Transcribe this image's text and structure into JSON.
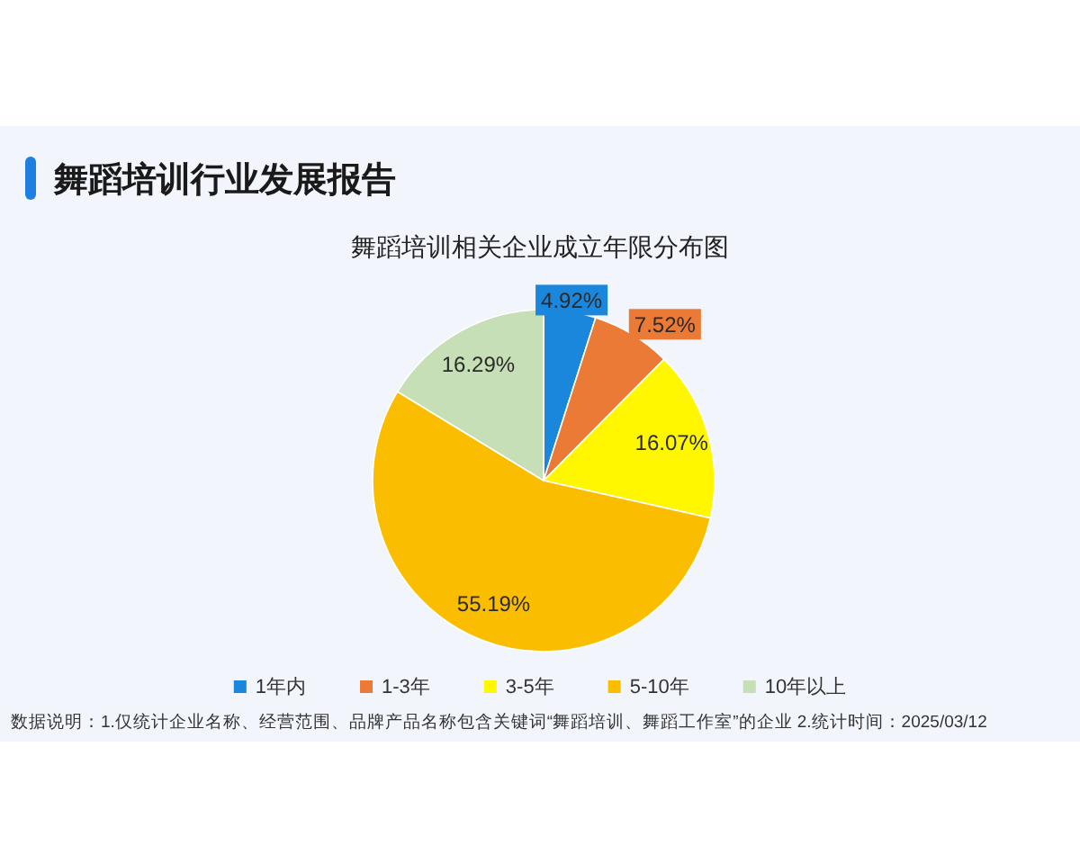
{
  "chart_data": {
    "type": "pie",
    "title": "舞蹈培训行业发展报告",
    "subtitle": "舞蹈培训相关企业成立年限分布图",
    "categories": [
      "1年内",
      "1-3年",
      "3-5年",
      "5-10年",
      "10年以上"
    ],
    "values": [
      4.92,
      7.52,
      16.07,
      55.19,
      16.29
    ],
    "value_labels": [
      "4.92%",
      "7.52%",
      "16.07%",
      "55.19%",
      "16.29%"
    ],
    "colors": [
      "#1a87dc",
      "#ea7a35",
      "#fff700",
      "#fbbd00",
      "#c6dfb6"
    ],
    "legend": "bottom",
    "annotations": [
      "数据说明：1.仅统计企业名称、经营范围、品牌产品名称包含关键词“舞蹈培训、舞蹈工作室”的企业  2.统计时间：2025/03/12"
    ]
  }
}
